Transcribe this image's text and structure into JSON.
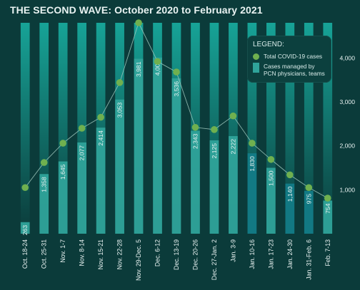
{
  "title": "THE SECOND WAVE: October 2020 to February 2021",
  "colors": {
    "background": "#0b3b3a",
    "bar_top": "#17a397",
    "bar_bottom": "#0b3b3a",
    "managed_bar": "#2fa39a",
    "managed_bar_dark": "#137c87",
    "total_marker": "#6fb04f",
    "line": "#9fc8bd",
    "text": "#e9f3f2"
  },
  "legend": {
    "title": "LEGEND:",
    "total": "Total COVID-19 cases",
    "managed": "Cases managed by PCN physicians, teams",
    "managed_line1": "Cases managed by",
    "managed_line2": "PCN physicians, teams",
    "placement": "top-right"
  },
  "chart_data": {
    "type": "bar",
    "title": "THE SECOND WAVE: October 2020 to February 2021",
    "categories": [
      "Oct. 18-24",
      "Oct. 25-31",
      "Nov. 1-7",
      "Nov. 8-14",
      "Nov. 15-21",
      "Nov. 22-28",
      "Nov. 29-Dec. 5",
      "Dec. 6-12",
      "Dec. 13-19",
      "Dec. 20-26",
      "Dec. 27-Jan. 2",
      "Jan. 3-9",
      "Jan. 10-16",
      "Jan. 17-23",
      "Jan. 24-30",
      "Jan. 31-Feb. 6",
      "Feb. 7-13"
    ],
    "series": [
      {
        "name": "Cases managed by PCN physicians, teams",
        "type": "bar",
        "values": [
          263,
          1358,
          1645,
          2077,
          2414,
          3053,
          3981,
          4009,
          3536,
          2343,
          2125,
          2222,
          1830,
          1500,
          1140,
          975,
          754
        ],
        "labels": [
          "263",
          "1,358",
          "1,645",
          "2,077",
          "2,414",
          "3,053",
          "3,981",
          "4,009",
          "3,536",
          "2,343",
          "2,125",
          "2,222",
          "1,830",
          "1,500",
          "1,140",
          "975",
          "754"
        ]
      },
      {
        "name": "Total COVID-19 cases",
        "type": "line",
        "values": [
          1050,
          1620,
          2060,
          2400,
          2650,
          3440,
          4800,
          3920,
          3680,
          2420,
          2370,
          2680,
          2060,
          1690,
          1340,
          1050,
          810
        ]
      }
    ],
    "ylim": [
      0,
      4800
    ],
    "yticks": [
      1000,
      2000,
      3000,
      4000
    ],
    "ytick_labels": [
      "1,000",
      "2,000",
      "3,000",
      "4,000"
    ],
    "y_axis_side": "right",
    "grid": false
  }
}
